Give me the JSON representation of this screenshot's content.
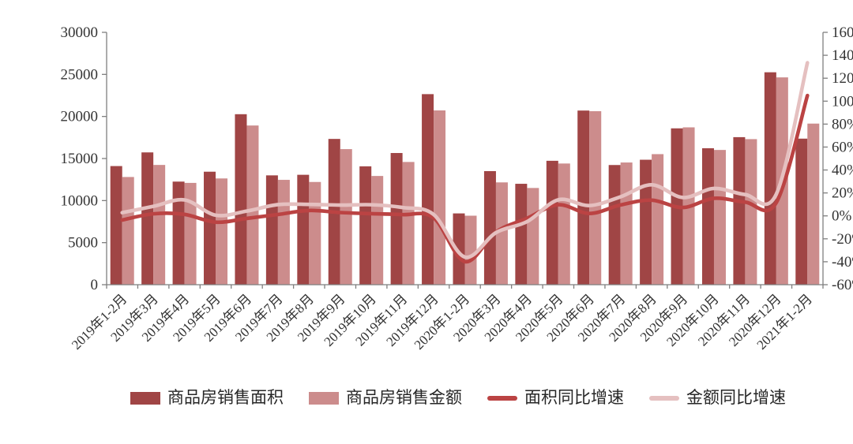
{
  "chart_data": {
    "type": "bar+line",
    "categories": [
      "2019年1-2月",
      "2019年3月",
      "2019年4月",
      "2019年5月",
      "2019年6月",
      "2019年7月",
      "2019年8月",
      "2019年9月",
      "2019年10月",
      "2019年11月",
      "2019年12月",
      "2020年1-2月",
      "2020年3月",
      "2020年4月",
      "2020年5月",
      "2020年6月",
      "2020年7月",
      "2020年8月",
      "2020年9月",
      "2020年10月",
      "2020年11月",
      "2020年12月",
      "2021年1-2月"
    ],
    "series": [
      {
        "name": "商品房销售面积",
        "type": "bar",
        "axis": "left",
        "color": "#A04545",
        "values": [
          14102,
          15727,
          12256,
          13433,
          20268,
          12997,
          13066,
          17330,
          14072,
          15654,
          22653,
          8475,
          13503,
          11995,
          14730,
          20701,
          14227,
          14855,
          18587,
          16221,
          17540,
          25252,
          17363
        ]
      },
      {
        "name": "商品房销售金额",
        "type": "bar",
        "axis": "left",
        "color": "#CC8C8C",
        "values": [
          12803,
          14236,
          12102,
          12632,
          18925,
          12464,
          12211,
          16118,
          12926,
          14589,
          20719,
          8203,
          12162,
          11498,
          14406,
          20626,
          14527,
          15521,
          18704,
          16018,
          17304,
          24644,
          19151
        ]
      },
      {
        "name": "面积同比增速",
        "type": "line",
        "axis": "right",
        "color": "#BB4343",
        "values": [
          -3.6,
          1.8,
          1.3,
          -5.5,
          -2.2,
          1.2,
          4.7,
          2.9,
          1.9,
          1.1,
          -1.7,
          -39.9,
          -14.1,
          -2.1,
          9.7,
          2.1,
          9.5,
          13.7,
          7.3,
          15.3,
          12.0,
          11.5,
          104.9
        ]
      },
      {
        "name": "金额同比增速",
        "type": "line",
        "axis": "right",
        "color": "#E5C0C0",
        "values": [
          2.8,
          8.3,
          13.9,
          0.6,
          4.2,
          9.8,
          10.0,
          9.4,
          9.7,
          7.3,
          1.2,
          -35.9,
          -14.6,
          -5.0,
          14.0,
          9.0,
          16.6,
          27.1,
          16.0,
          23.9,
          18.6,
          18.9,
          133.5
        ]
      }
    ],
    "left_axis": {
      "min": 0,
      "max": 30000,
      "step": 5000,
      "tick_labels": [
        "0",
        "5000",
        "10000",
        "15000",
        "20000",
        "25000",
        "30000"
      ]
    },
    "right_axis": {
      "min": -60,
      "max": 160,
      "step": 20,
      "format": "percent",
      "tick_labels": [
        "-60%",
        "-40%",
        "-20%",
        "0%",
        "20%",
        "40%",
        "60%",
        "80%",
        "100%",
        "120%",
        "140%",
        "160%"
      ]
    },
    "grid": false,
    "legend_position": "bottom",
    "title": "",
    "xlabel": "",
    "ylabel": "",
    "style": {
      "axis_color": "#7f7f7f",
      "text_color": "#333333",
      "background": "#ffffff"
    }
  }
}
